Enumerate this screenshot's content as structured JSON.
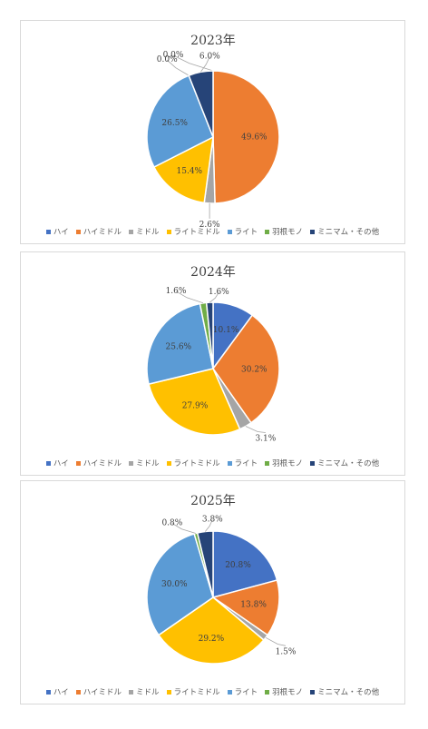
{
  "legend": [
    {
      "label": "ハイ",
      "color": "#4472c4"
    },
    {
      "label": "ハイミドル",
      "color": "#ed7d31"
    },
    {
      "label": "ミドル",
      "color": "#a5a5a5"
    },
    {
      "label": "ライトミドル",
      "color": "#ffc000"
    },
    {
      "label": "ライト",
      "color": "#5b9bd5"
    },
    {
      "label": "羽根モノ",
      "color": "#70ad47"
    },
    {
      "label": "ミニマム・その他",
      "color": "#264478"
    }
  ],
  "chart_data": [
    {
      "type": "pie",
      "title": "2023年",
      "categories": [
        "ハイ",
        "ハイミドル",
        "ミドル",
        "ライトミドル",
        "ライト",
        "羽根モノ",
        "ミニマム・その他"
      ],
      "values": [
        0.0,
        49.6,
        2.6,
        15.4,
        26.5,
        0.0,
        6.0
      ],
      "labels": [
        "0.0%",
        "49.6%",
        "2.6%",
        "15.4%",
        "26.5%",
        "0.0%",
        "6.0%"
      ]
    },
    {
      "type": "pie",
      "title": "2024年",
      "categories": [
        "ハイ",
        "ハイミドル",
        "ミドル",
        "ライトミドル",
        "ライト",
        "羽根モノ",
        "ミニマム・その他"
      ],
      "values": [
        10.1,
        30.2,
        3.1,
        27.9,
        25.6,
        1.6,
        1.6
      ],
      "labels": [
        "10.1%",
        "30.2%",
        "3.1%",
        "27.9%",
        "25.6%",
        "1.6%",
        "1.6%"
      ]
    },
    {
      "type": "pie",
      "title": "2025年",
      "categories": [
        "ハイ",
        "ハイミドル",
        "ミドル",
        "ライトミドル",
        "ライト",
        "羽根モノ",
        "ミニマム・その他"
      ],
      "values": [
        20.8,
        13.8,
        1.5,
        29.2,
        30.0,
        0.8,
        3.8
      ],
      "labels": [
        "20.8%",
        "13.8%",
        "1.5%",
        "29.2%",
        "30.0%",
        "0.8%",
        "3.8%"
      ]
    }
  ]
}
